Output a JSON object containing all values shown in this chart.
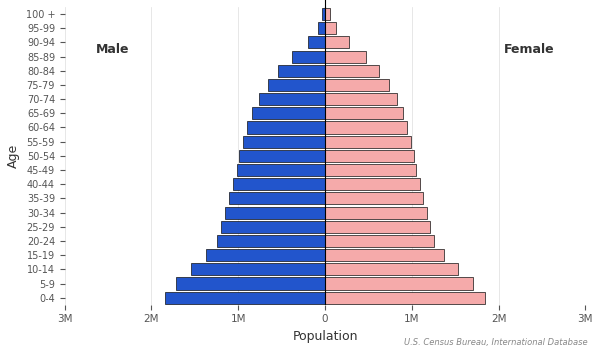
{
  "age_groups": [
    "0-4",
    "5-9",
    "10-14",
    "15-19",
    "20-24",
    "25-29",
    "30-34",
    "35-39",
    "40-44",
    "45-49",
    "50-54",
    "55-59",
    "60-64",
    "65-69",
    "70-74",
    "75-79",
    "80-84",
    "85-89",
    "90-94",
    "95-99",
    "100 +"
  ],
  "male": [
    1850000,
    1720000,
    1550000,
    1370000,
    1250000,
    1200000,
    1150000,
    1110000,
    1060000,
    1010000,
    990000,
    950000,
    900000,
    840000,
    760000,
    660000,
    540000,
    380000,
    200000,
    80000,
    30000
  ],
  "female": [
    1840000,
    1700000,
    1530000,
    1370000,
    1260000,
    1210000,
    1170000,
    1130000,
    1090000,
    1050000,
    1020000,
    990000,
    950000,
    900000,
    830000,
    740000,
    620000,
    470000,
    280000,
    130000,
    55000
  ],
  "male_color": "#2255CC",
  "female_color": "#F5AAAA",
  "male_edge_color": "#111111",
  "female_edge_color": "#111111",
  "xlabel": "Population",
  "ylabel": "Age",
  "xlim": 3000000,
  "male_label": "Male",
  "female_label": "Female",
  "source": "U.S. Census Bureau, International Database",
  "bg_color": "#FFFFFF",
  "bar_height": 0.85
}
